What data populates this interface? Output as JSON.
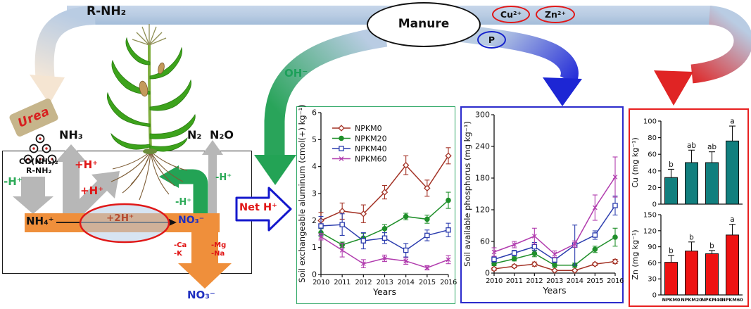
{
  "diagram": {
    "labels": {
      "r_nh2": "R-NH₂",
      "manure": "Manure",
      "cu_ion": "Cu²⁺",
      "zn_ion": "Zn²⁺",
      "p_ion": "P",
      "oh": "OH⁻",
      "urea": "Urea",
      "nh3": "NH₃",
      "n2_n2o": "N₂ N₂O",
      "co_nh2_2": "CO(NH₂)₂",
      "r_nh2_small": "R-NH₂",
      "minus_h": "-H⁺",
      "plus_h": "+H⁺",
      "nh4": "NH₄⁺",
      "plus_2h": "+2H⁺",
      "no3": "NO₃⁻",
      "minus_ca": "-Ca",
      "minus_k": "-K",
      "minus_mg": "-Mg",
      "minus_na": "-Na",
      "net_h": "Net H⁺"
    }
  },
  "colors": {
    "band": "#b9cce3",
    "gray_arrow": "#b7b7b7",
    "orange": "#ef8f3b",
    "green_arrow": "#23a355",
    "blue_arrow": "#1d26d4",
    "red_arrow": "#e02424",
    "teal_bar": "#117f7e",
    "red_bar": "#ee1212"
  },
  "chart_data": [
    {
      "type": "line",
      "title": "",
      "ylabel": "Soil exchangeable aluminum (cmol(+) kg⁻¹)",
      "xlabel": "Years",
      "x": [
        2010,
        2011,
        2012,
        2013,
        2014,
        2015,
        2016
      ],
      "ylim": [
        0,
        6
      ],
      "yticks": [
        0,
        1,
        2,
        3,
        4,
        5,
        6
      ],
      "grid": false,
      "legend": true,
      "legend_position": "top-left",
      "series": [
        {
          "name": "NPKM0",
          "color": "#a33225",
          "marker": "diamond-open",
          "values": [
            2.0,
            2.35,
            2.25,
            3.05,
            4.05,
            3.2,
            4.4
          ],
          "errors": [
            0.3,
            0.3,
            0.33,
            0.25,
            0.35,
            0.3,
            0.3
          ]
        },
        {
          "name": "NPKM20",
          "color": "#1f8f2a",
          "marker": "circle-filled",
          "values": [
            1.55,
            1.1,
            1.35,
            1.7,
            2.15,
            2.05,
            2.75
          ],
          "errors": [
            0.15,
            0.1,
            0.18,
            0.15,
            0.12,
            0.15,
            0.3
          ]
        },
        {
          "name": "NPKM40",
          "color": "#2b3cae",
          "marker": "square-open",
          "values": [
            1.8,
            1.85,
            1.25,
            1.35,
            0.9,
            1.45,
            1.65
          ],
          "errors": [
            0.35,
            0.4,
            0.3,
            0.2,
            0.25,
            0.2,
            0.25
          ]
        },
        {
          "name": "NPKM60",
          "color": "#b13cae",
          "marker": "x",
          "values": [
            1.4,
            0.9,
            0.4,
            0.6,
            0.5,
            0.25,
            0.55
          ],
          "errors": [
            0.12,
            0.25,
            0.15,
            0.12,
            0.12,
            0.08,
            0.15
          ]
        }
      ]
    },
    {
      "type": "line",
      "title": "",
      "ylabel": "Soil available phosphorus (mg kg⁻¹)",
      "xlabel": "Years",
      "x": [
        2010,
        2011,
        2012,
        2013,
        2014,
        2015,
        2016
      ],
      "ylim": [
        0,
        300
      ],
      "yticks": [
        0,
        60,
        120,
        180,
        240,
        300
      ],
      "grid": false,
      "legend": false,
      "series": [
        {
          "name": "NPKM0",
          "color": "#a33225",
          "marker": "diamond-open",
          "values": [
            8,
            13,
            17,
            5,
            5,
            17,
            22
          ],
          "errors": [
            3,
            3,
            4,
            2,
            2,
            3,
            4
          ]
        },
        {
          "name": "NPKM20",
          "color": "#1f8f2a",
          "marker": "circle-filled",
          "values": [
            18,
            27,
            37,
            15,
            15,
            45,
            68
          ],
          "errors": [
            4,
            4,
            6,
            4,
            4,
            6,
            17
          ]
        },
        {
          "name": "NPKM40",
          "color": "#2b3cae",
          "marker": "square-open",
          "values": [
            26,
            38,
            50,
            25,
            53,
            72,
            128
          ],
          "errors": [
            5,
            5,
            8,
            5,
            38,
            8,
            18
          ]
        },
        {
          "name": "NPKM60",
          "color": "#b13cae",
          "marker": "x",
          "values": [
            40,
            54,
            70,
            36,
            55,
            124,
            182
          ],
          "errors": [
            8,
            6,
            15,
            6,
            6,
            24,
            38
          ]
        }
      ]
    },
    {
      "type": "bar",
      "title": "",
      "ylabel": "Cu (mg kg⁻¹)",
      "xlabel": "",
      "categories": [
        "NPKM0",
        "NPKM20",
        "NPKM40",
        "NPKM60"
      ],
      "values": [
        32,
        50,
        50,
        76
      ],
      "errors": [
        10,
        15,
        13,
        18
      ],
      "letters": [
        "b",
        "ab",
        "ab",
        "a"
      ],
      "bar_color": "#117f7e",
      "ylim": [
        0,
        100
      ],
      "yticks": [
        0,
        20,
        40,
        60,
        80,
        100
      ],
      "grid": false
    },
    {
      "type": "bar",
      "title": "",
      "ylabel": "Zn (mg kg⁻¹)",
      "xlabel": "",
      "categories": [
        "NPKM0",
        "NPKM20",
        "NPKM40",
        "NPKM60"
      ],
      "values": [
        61,
        82,
        77,
        112
      ],
      "errors": [
        13,
        17,
        6,
        20
      ],
      "letters": [
        "b",
        "b",
        "b",
        "a"
      ],
      "bar_color": "#ee1212",
      "ylim": [
        0,
        150
      ],
      "yticks": [
        0,
        30,
        60,
        90,
        120,
        150
      ],
      "grid": false
    }
  ]
}
